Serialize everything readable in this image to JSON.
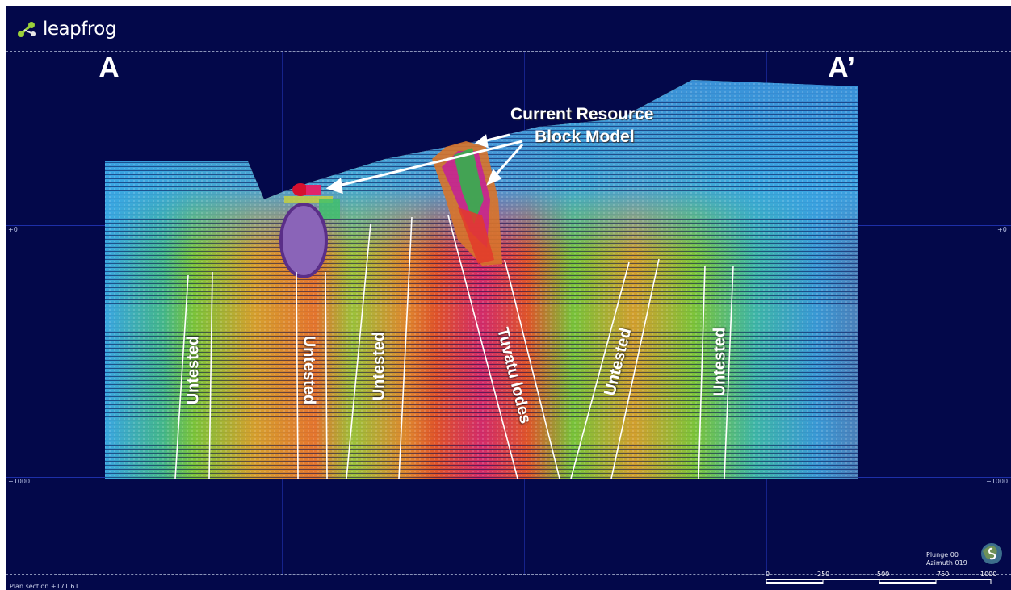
{
  "app": {
    "logo_text": "leapfrog"
  },
  "section": {
    "start_label": "A",
    "end_label": "A’"
  },
  "axis": {
    "elev_zero_left": "+0",
    "elev_zero_right": "+0",
    "elev_minus1000_left": "−1000",
    "elev_minus1000_right": "−1000"
  },
  "annotations": {
    "resource_line1": "Current Resource",
    "resource_line2": "Block Model",
    "targets": [
      {
        "label": "Untested"
      },
      {
        "label": "Untested"
      },
      {
        "label": "Untested"
      },
      {
        "label": "Tuvatu lodes"
      },
      {
        "label": "Untested"
      },
      {
        "label": "Untested"
      }
    ]
  },
  "status": {
    "plan_section": "Plan section +171.61",
    "plunge": "Plunge 00",
    "azimuth": "Azimuth 019"
  },
  "scale": {
    "ticks": [
      "0",
      "250",
      "500",
      "750",
      "1000"
    ]
  },
  "colors": {
    "background": "#03084a",
    "low": "#3aa0e8",
    "mid": "#4fbf2e",
    "high": "#e0532a",
    "peak": "#c01a8a"
  },
  "icons": {
    "compass": "compass-icon",
    "logo": "leapfrog-logo-icon"
  }
}
